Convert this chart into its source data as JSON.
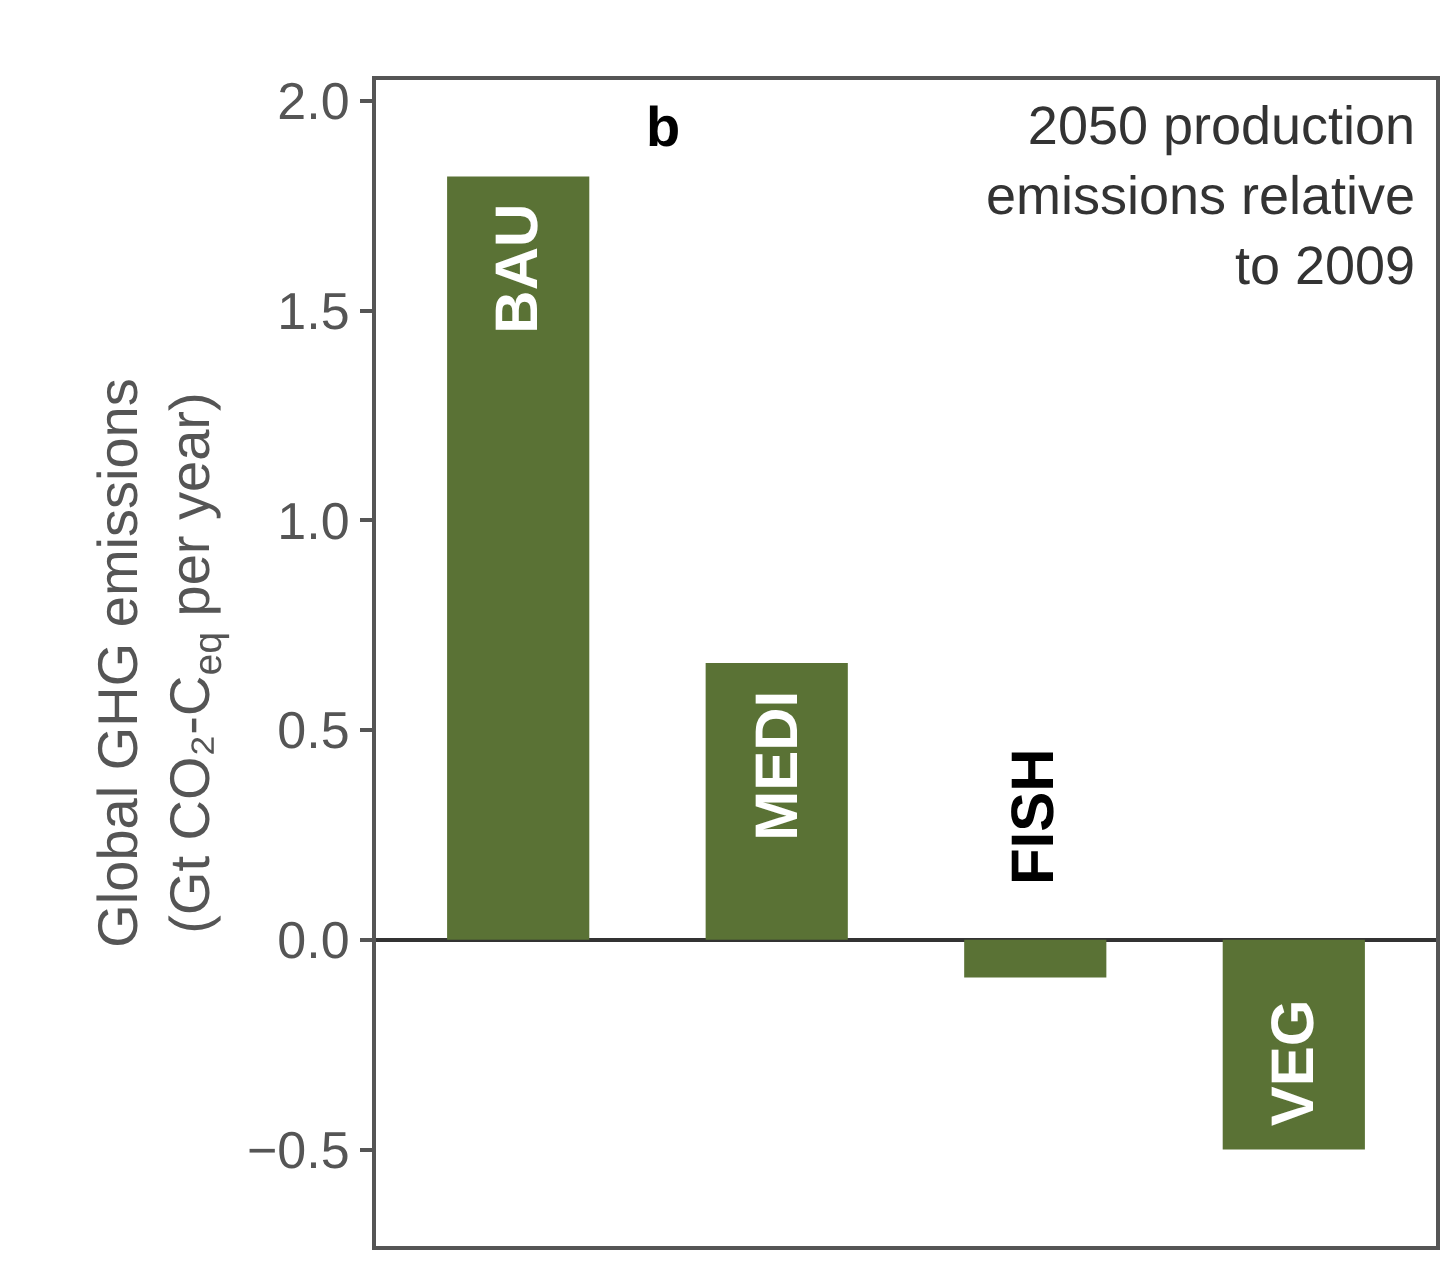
{
  "chart_data": {
    "type": "bar",
    "ylabel": "Global GHG emissions\n(Gt CO₂-C$_{eq}$ per year)",
    "annotations": [
      "b",
      "2050 production\nemissions relative\nto 2009"
    ],
    "categories": [
      "BAU",
      "MEDI",
      "FISH",
      "VEG"
    ],
    "values": [
      1.82,
      0.66,
      -0.09,
      -0.5
    ],
    "color": "#5a7235",
    "ylim": [
      -0.73,
      2.05
    ],
    "yticks": [
      {
        "value": -0.5,
        "label": "−0.5"
      },
      "0.0",
      0.5,
      "1.0",
      1.5,
      "2.0"
    ],
    "tick_labels": "y",
    "legend": false
  }
}
